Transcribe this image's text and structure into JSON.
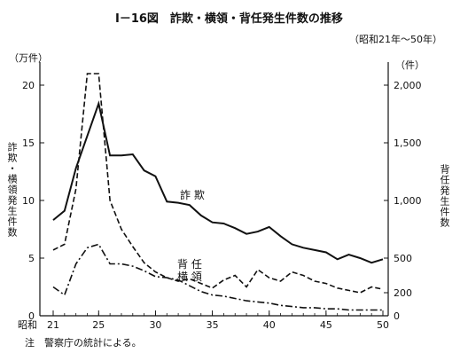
{
  "title": "Ⅰ－16図　詐欺・横領・背任発生件数の推移",
  "subtitle": "（昭和21年～50年）",
  "note": "注　警察庁の統計による。",
  "chart_data": {
    "type": "line",
    "x_prefix": "昭和",
    "x_ticks": [
      21,
      25,
      30,
      35,
      40,
      45,
      50
    ],
    "xlim": [
      21,
      50
    ],
    "left_axis": {
      "label": "詐欺・横領発生件数",
      "unit": "（万件）",
      "ticks": [
        0,
        5,
        10,
        15,
        20
      ],
      "ylim": [
        0,
        22
      ]
    },
    "right_axis": {
      "label": "背任発生件数",
      "unit": "（件）",
      "ticks": [
        0,
        200,
        500,
        1000,
        1500,
        2000
      ],
      "tick_labels": [
        "0",
        "200",
        "500",
        "1,000",
        "1,500",
        "2,000"
      ],
      "ylim": [
        0,
        2200
      ]
    },
    "series": [
      {
        "name": "詐欺",
        "axis": "left",
        "style": "solid",
        "x": [
          21,
          22,
          23,
          24,
          25,
          26,
          27,
          28,
          29,
          30,
          31,
          32,
          33,
          34,
          35,
          36,
          37,
          38,
          39,
          40,
          41,
          42,
          43,
          44,
          45,
          46,
          47,
          48,
          49,
          50
        ],
        "values": [
          8.3,
          9.1,
          12.8,
          15.6,
          18.4,
          13.9,
          13.9,
          14.0,
          12.6,
          12.1,
          9.9,
          9.8,
          9.6,
          8.7,
          8.1,
          8.0,
          7.6,
          7.1,
          7.3,
          7.7,
          6.9,
          6.2,
          5.9,
          5.7,
          5.5,
          4.9,
          5.3,
          5.0,
          4.6,
          4.9
        ]
      },
      {
        "name": "背任",
        "axis": "right",
        "style": "dash",
        "x": [
          21,
          22,
          23,
          24,
          25,
          26,
          27,
          28,
          29,
          30,
          31,
          32,
          33,
          34,
          35,
          36,
          37,
          38,
          39,
          40,
          41,
          42,
          43,
          44,
          45,
          46,
          47,
          48,
          49,
          50
        ],
        "values": [
          570,
          620,
          1100,
          2100,
          2100,
          1000,
          750,
          600,
          460,
          380,
          330,
          300,
          320,
          280,
          240,
          310,
          350,
          250,
          400,
          330,
          300,
          380,
          350,
          300,
          280,
          240,
          220,
          200,
          250,
          230
        ]
      },
      {
        "name": "横領",
        "axis": "left",
        "style": "dashdot",
        "x": [
          21,
          22,
          23,
          24,
          25,
          26,
          27,
          28,
          29,
          30,
          31,
          32,
          33,
          34,
          35,
          36,
          37,
          38,
          39,
          40,
          41,
          42,
          43,
          44,
          45,
          46,
          47,
          48,
          49,
          50
        ],
        "values": [
          2.5,
          1.8,
          4.5,
          5.9,
          6.2,
          4.5,
          4.5,
          4.3,
          3.9,
          3.4,
          3.3,
          3.1,
          2.6,
          2.1,
          1.8,
          1.7,
          1.5,
          1.3,
          1.2,
          1.1,
          0.9,
          0.8,
          0.7,
          0.7,
          0.6,
          0.6,
          0.5,
          0.5,
          0.5,
          0.5
        ]
      }
    ],
    "annotations": [
      "詐欺",
      "背任",
      "横領"
    ],
    "legend": "none",
    "grid": false
  }
}
